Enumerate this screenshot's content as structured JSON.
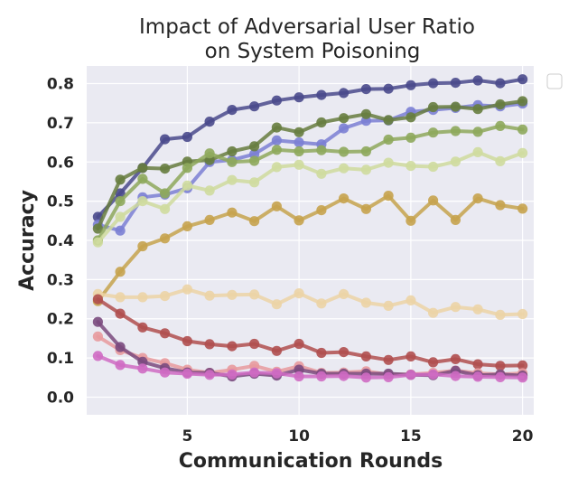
{
  "chart_data": {
    "type": "line",
    "title_lines": [
      "Impact of Adversarial User Ratio",
      "on System Poisoning"
    ],
    "xlabel": "Communication Rounds",
    "ylabel": "Accuracy",
    "xlim": [
      0.5,
      20.5
    ],
    "ylim": [
      -0.045,
      0.845
    ],
    "xticks": [
      5,
      10,
      15,
      20
    ],
    "yticks": [
      0.0,
      0.1,
      0.2,
      0.3,
      0.4,
      0.5,
      0.6,
      0.7,
      0.8
    ],
    "ytick_labels": [
      "0.0",
      "0.1",
      "0.2",
      "0.3",
      "0.4",
      "0.5",
      "0.6",
      "0.7",
      "0.8"
    ],
    "grid": true,
    "legend": "empty box, outside top-right",
    "plot_background": "#eaeaf2",
    "x": [
      1,
      2,
      3,
      4,
      5,
      6,
      7,
      8,
      9,
      10,
      11,
      12,
      13,
      14,
      15,
      16,
      17,
      18,
      19,
      20
    ],
    "series": [
      {
        "color": "#4a4a8c",
        "values": [
          0.46,
          0.52,
          0.585,
          0.658,
          0.664,
          0.703,
          0.733,
          0.742,
          0.757,
          0.765,
          0.771,
          0.776,
          0.786,
          0.787,
          0.796,
          0.801,
          0.802,
          0.808,
          0.801,
          0.811
        ]
      },
      {
        "color": "#7b7fd4",
        "values": [
          0.44,
          0.425,
          0.51,
          0.517,
          0.533,
          0.6,
          0.605,
          0.62,
          0.655,
          0.65,
          0.645,
          0.686,
          0.705,
          0.706,
          0.728,
          0.733,
          0.738,
          0.745,
          0.742,
          0.749
        ]
      },
      {
        "color": "#677d3f",
        "values": [
          0.43,
          0.555,
          0.585,
          0.583,
          0.601,
          0.605,
          0.627,
          0.64,
          0.688,
          0.676,
          0.701,
          0.712,
          0.722,
          0.707,
          0.714,
          0.74,
          0.741,
          0.735,
          0.747,
          0.755
        ]
      },
      {
        "color": "#8ea85c",
        "values": [
          0.4,
          0.5,
          0.557,
          0.52,
          0.585,
          0.622,
          0.6,
          0.603,
          0.631,
          0.627,
          0.63,
          0.626,
          0.627,
          0.657,
          0.662,
          0.675,
          0.679,
          0.677,
          0.692,
          0.683
        ]
      },
      {
        "color": "#cfdb9e",
        "values": [
          0.395,
          0.46,
          0.5,
          0.48,
          0.54,
          0.527,
          0.554,
          0.548,
          0.587,
          0.593,
          0.57,
          0.584,
          0.58,
          0.598,
          0.59,
          0.588,
          0.601,
          0.625,
          0.602,
          0.623
        ]
      },
      {
        "color": "#c6a34e",
        "values": [
          0.245,
          0.32,
          0.385,
          0.405,
          0.436,
          0.452,
          0.471,
          0.449,
          0.487,
          0.451,
          0.477,
          0.507,
          0.48,
          0.514,
          0.45,
          0.502,
          0.452,
          0.507,
          0.49,
          0.481
        ]
      },
      {
        "color": "#ecd4a6",
        "values": [
          0.263,
          0.255,
          0.255,
          0.258,
          0.275,
          0.259,
          0.261,
          0.262,
          0.237,
          0.265,
          0.239,
          0.263,
          0.241,
          0.233,
          0.247,
          0.215,
          0.23,
          0.224,
          0.21,
          0.212
        ]
      },
      {
        "color": "#b04f4f",
        "values": [
          0.25,
          0.213,
          0.178,
          0.163,
          0.143,
          0.135,
          0.13,
          0.136,
          0.118,
          0.136,
          0.113,
          0.115,
          0.104,
          0.095,
          0.104,
          0.089,
          0.097,
          0.084,
          0.08,
          0.081
        ]
      },
      {
        "color": "#e89a9d",
        "values": [
          0.155,
          0.12,
          0.1,
          0.087,
          0.07,
          0.062,
          0.07,
          0.08,
          0.065,
          0.079,
          0.062,
          0.063,
          0.066,
          0.058,
          0.058,
          0.062,
          0.068,
          0.061,
          0.058,
          0.061
        ]
      },
      {
        "color": "#7a4a7e",
        "values": [
          0.192,
          0.128,
          0.09,
          0.074,
          0.063,
          0.062,
          0.053,
          0.06,
          0.055,
          0.07,
          0.06,
          0.06,
          0.06,
          0.06,
          0.057,
          0.056,
          0.067,
          0.056,
          0.058,
          0.055
        ]
      },
      {
        "color": "#cf6bc3",
        "values": [
          0.105,
          0.082,
          0.073,
          0.063,
          0.06,
          0.057,
          0.058,
          0.063,
          0.061,
          0.053,
          0.053,
          0.054,
          0.05,
          0.051,
          0.057,
          0.058,
          0.054,
          0.052,
          0.051,
          0.05
        ]
      }
    ]
  }
}
